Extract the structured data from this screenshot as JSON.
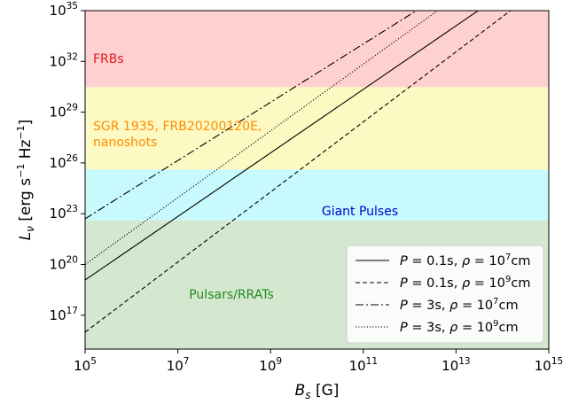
{
  "chart_data": {
    "type": "line",
    "xlabel": {
      "base": "B",
      "sub": "s",
      "unit": " [G]"
    },
    "ylabel": {
      "sym": "L",
      "sub": "ν",
      "unit_pre": " [erg s",
      "unit_exp": "−1",
      "unit_mid": " Hz",
      "unit_exp2": "−1",
      "unit_post": "]"
    },
    "x_scale": "log",
    "y_scale": "log",
    "xlim": [
      100000,
      1000000000000000.0
    ],
    "ylim": [
      1000000000000000.0,
      1e+35
    ],
    "x_ticks": [
      {
        "base": "10",
        "exp": "5",
        "value": 100000.0
      },
      {
        "base": "10",
        "exp": "7",
        "value": 10000000.0
      },
      {
        "base": "10",
        "exp": "9",
        "value": 1000000000.0
      },
      {
        "base": "10",
        "exp": "11",
        "value": 100000000000.0
      },
      {
        "base": "10",
        "exp": "13",
        "value": 10000000000000.0
      },
      {
        "base": "10",
        "exp": "15",
        "value": 1000000000000000.0
      }
    ],
    "y_ticks": [
      {
        "base": "10",
        "exp": "17",
        "value": 1e+17
      },
      {
        "base": "10",
        "exp": "20",
        "value": 1e+20
      },
      {
        "base": "10",
        "exp": "23",
        "value": 1e+23
      },
      {
        "base": "10",
        "exp": "26",
        "value": 1e+26
      },
      {
        "base": "10",
        "exp": "29",
        "value": 1e+29
      },
      {
        "base": "10",
        "exp": "32",
        "value": 1e+32
      },
      {
        "base": "10",
        "exp": "35",
        "value": 1e+35
      }
    ],
    "grid": false,
    "regions": [
      {
        "label": "FRBs",
        "y_range": [
          3e+30,
          1e+35
        ],
        "fill": "#ffd0d0",
        "text_color": "#e41a1c"
      },
      {
        "label": "SGR 1935, FRB20200120E,\nnanoshots",
        "y_range": [
          4e+25,
          3e+30
        ],
        "fill": "#fdf9c3",
        "text_color": "#ff8c00"
      },
      {
        "label": "Giant Pulses",
        "y_range": [
          4e+22,
          4e+25
        ],
        "fill": "#c8fafd",
        "text_color": "#0000cc"
      },
      {
        "label": "Pulsars/RRATs",
        "y_range": [
          1000000000000000.0,
          4e+22
        ],
        "fill": "#d4e8d0",
        "text_color": "#228b22"
      }
    ],
    "series": [
      {
        "P": "0.1",
        "rho_exp": "7",
        "line_style": "solid",
        "x": [
          100000,
          30000000000000.0
        ],
        "y": [
          1.2e+19,
          1e+35
        ]
      },
      {
        "P": "0.1",
        "rho_exp": "9",
        "line_style": "dashed",
        "x": [
          100000,
          150000000000000.0
        ],
        "y": [
          1e+16,
          1e+35
        ]
      },
      {
        "P": "3",
        "rho_exp": "7",
        "line_style": "dashdot",
        "x": [
          100000,
          1400000000000.0
        ],
        "y": [
          5e+22,
          1e+35
        ]
      },
      {
        "P": "3",
        "rho_exp": "9",
        "line_style": "dotted",
        "x": [
          100000,
          4000000000000.0
        ],
        "y": [
          1e+20,
          1e+35
        ]
      }
    ],
    "legend": {
      "position": "lower-right"
    }
  }
}
